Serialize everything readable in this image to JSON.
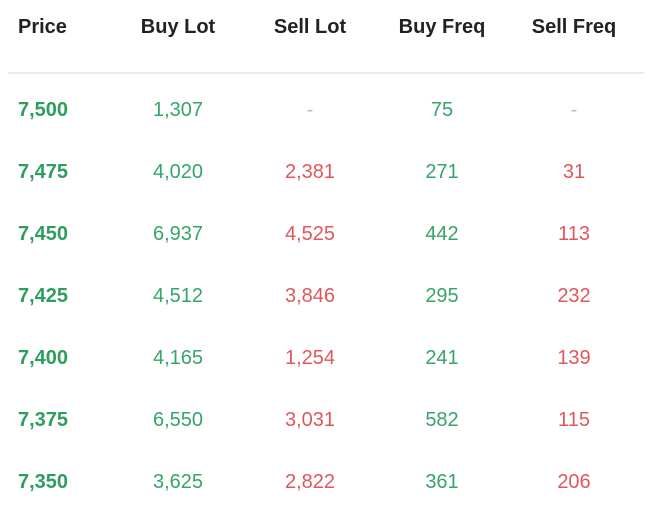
{
  "headers": {
    "price": "Price",
    "buy_lot": "Buy Lot",
    "sell_lot": "Sell Lot",
    "buy_freq": "Buy Freq",
    "sell_freq": "Sell Freq"
  },
  "colors": {
    "price": "#2e9e5e",
    "buy": "#35a56a",
    "sell": "#e0575b",
    "empty": "#b9bfc6",
    "header": "#222222",
    "divider": "#e9ecef"
  },
  "rows": [
    {
      "price": "7,500",
      "buy_lot": "1,307",
      "sell_lot": "-",
      "buy_freq": "75",
      "sell_freq": "-"
    },
    {
      "price": "7,475",
      "buy_lot": "4,020",
      "sell_lot": "2,381",
      "buy_freq": "271",
      "sell_freq": "31"
    },
    {
      "price": "7,450",
      "buy_lot": "6,937",
      "sell_lot": "4,525",
      "buy_freq": "442",
      "sell_freq": "113"
    },
    {
      "price": "7,425",
      "buy_lot": "4,512",
      "sell_lot": "3,846",
      "buy_freq": "295",
      "sell_freq": "232"
    },
    {
      "price": "7,400",
      "buy_lot": "4,165",
      "sell_lot": "1,254",
      "buy_freq": "241",
      "sell_freq": "139"
    },
    {
      "price": "7,375",
      "buy_lot": "6,550",
      "sell_lot": "3,031",
      "buy_freq": "582",
      "sell_freq": "115"
    },
    {
      "price": "7,350",
      "buy_lot": "3,625",
      "sell_lot": "2,822",
      "buy_freq": "361",
      "sell_freq": "206"
    }
  ]
}
